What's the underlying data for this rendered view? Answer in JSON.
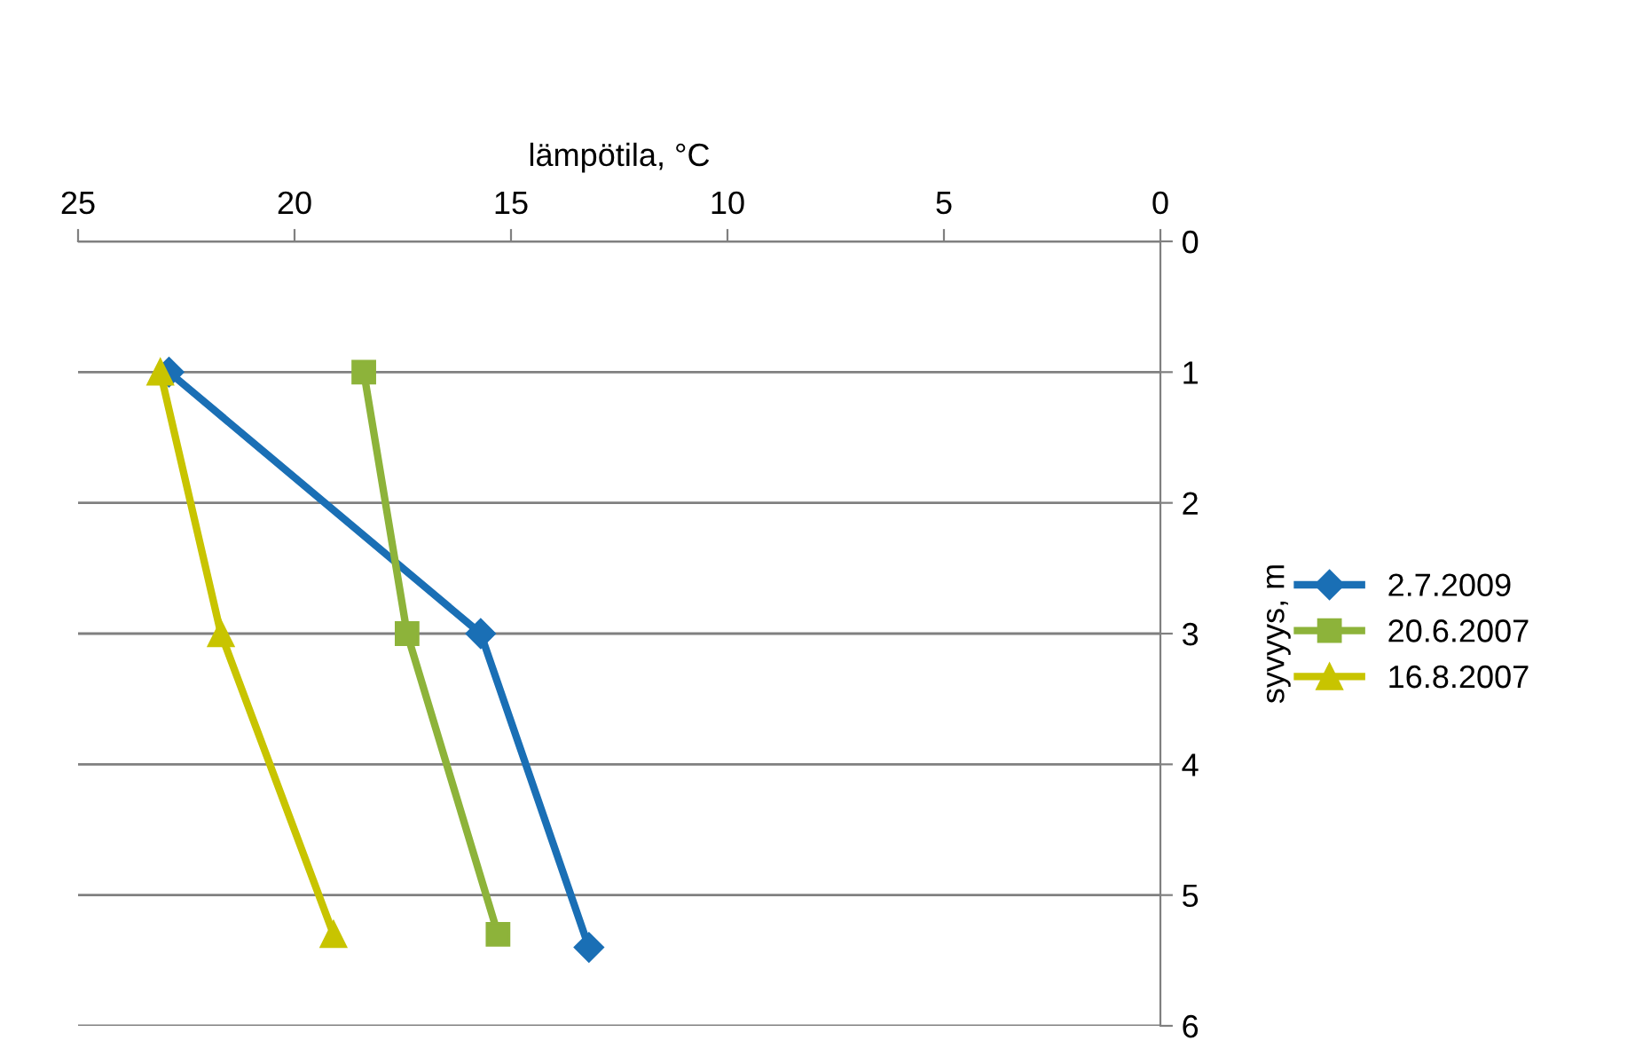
{
  "chart_data": {
    "type": "line",
    "xlabel": "lämpötila, °C",
    "ylabel": "syvyys, m",
    "xlim": [
      25,
      0
    ],
    "xticks": [
      25,
      20,
      15,
      10,
      5,
      0
    ],
    "ylim": [
      6,
      0
    ],
    "yticks": [
      0,
      1,
      2,
      3,
      4,
      5,
      6
    ],
    "grid": "y",
    "legend": "right",
    "line_style": "solid",
    "series": [
      {
        "name": "2.7.2009",
        "color": "#1a6fb5",
        "marker": "diamond",
        "x": [
          22.9,
          15.7,
          13.2
        ],
        "values": [
          1,
          3,
          5.4
        ]
      },
      {
        "name": "20.6.2007",
        "color": "#8db33a",
        "marker": "square",
        "x": [
          18.4,
          17.4,
          15.3
        ],
        "values": [
          1,
          3,
          5.3
        ]
      },
      {
        "name": "16.8.2007",
        "color": "#c8c400",
        "marker": "triangle",
        "x": [
          23.1,
          21.7,
          19.1
        ],
        "values": [
          1,
          3,
          5.3
        ]
      }
    ]
  }
}
